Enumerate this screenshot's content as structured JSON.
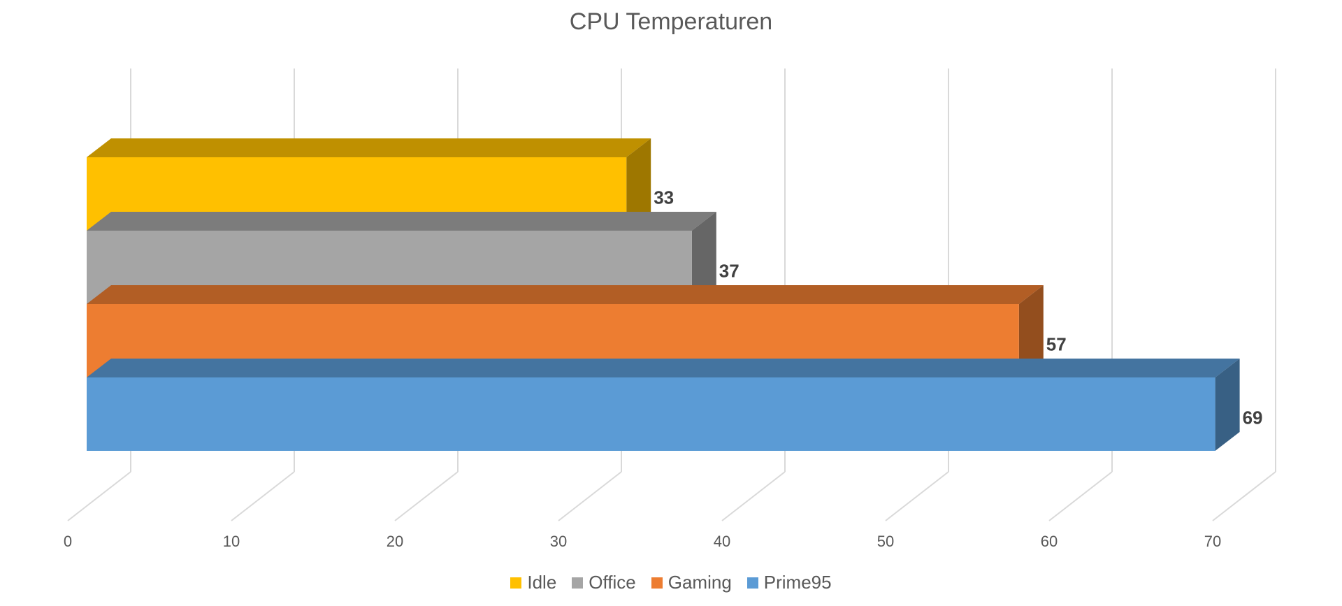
{
  "chart_data": {
    "type": "bar",
    "orientation": "horizontal",
    "three_d": true,
    "title": "CPU Temperaturen",
    "xlabel": "",
    "ylabel": "",
    "xlim": [
      0,
      70
    ],
    "x_ticks": [
      "0",
      "10",
      "20",
      "30",
      "40",
      "50",
      "60",
      "70"
    ],
    "grid": true,
    "legend_position": "bottom",
    "show_data_labels": true,
    "series": [
      {
        "name": "Idle",
        "value": 33,
        "color": "#FFC000"
      },
      {
        "name": "Office",
        "value": 37,
        "color": "#A5A5A5"
      },
      {
        "name": "Gaming",
        "value": 57,
        "color": "#ED7D31"
      },
      {
        "name": "Prime95",
        "value": 69,
        "color": "#5B9BD5"
      }
    ]
  }
}
